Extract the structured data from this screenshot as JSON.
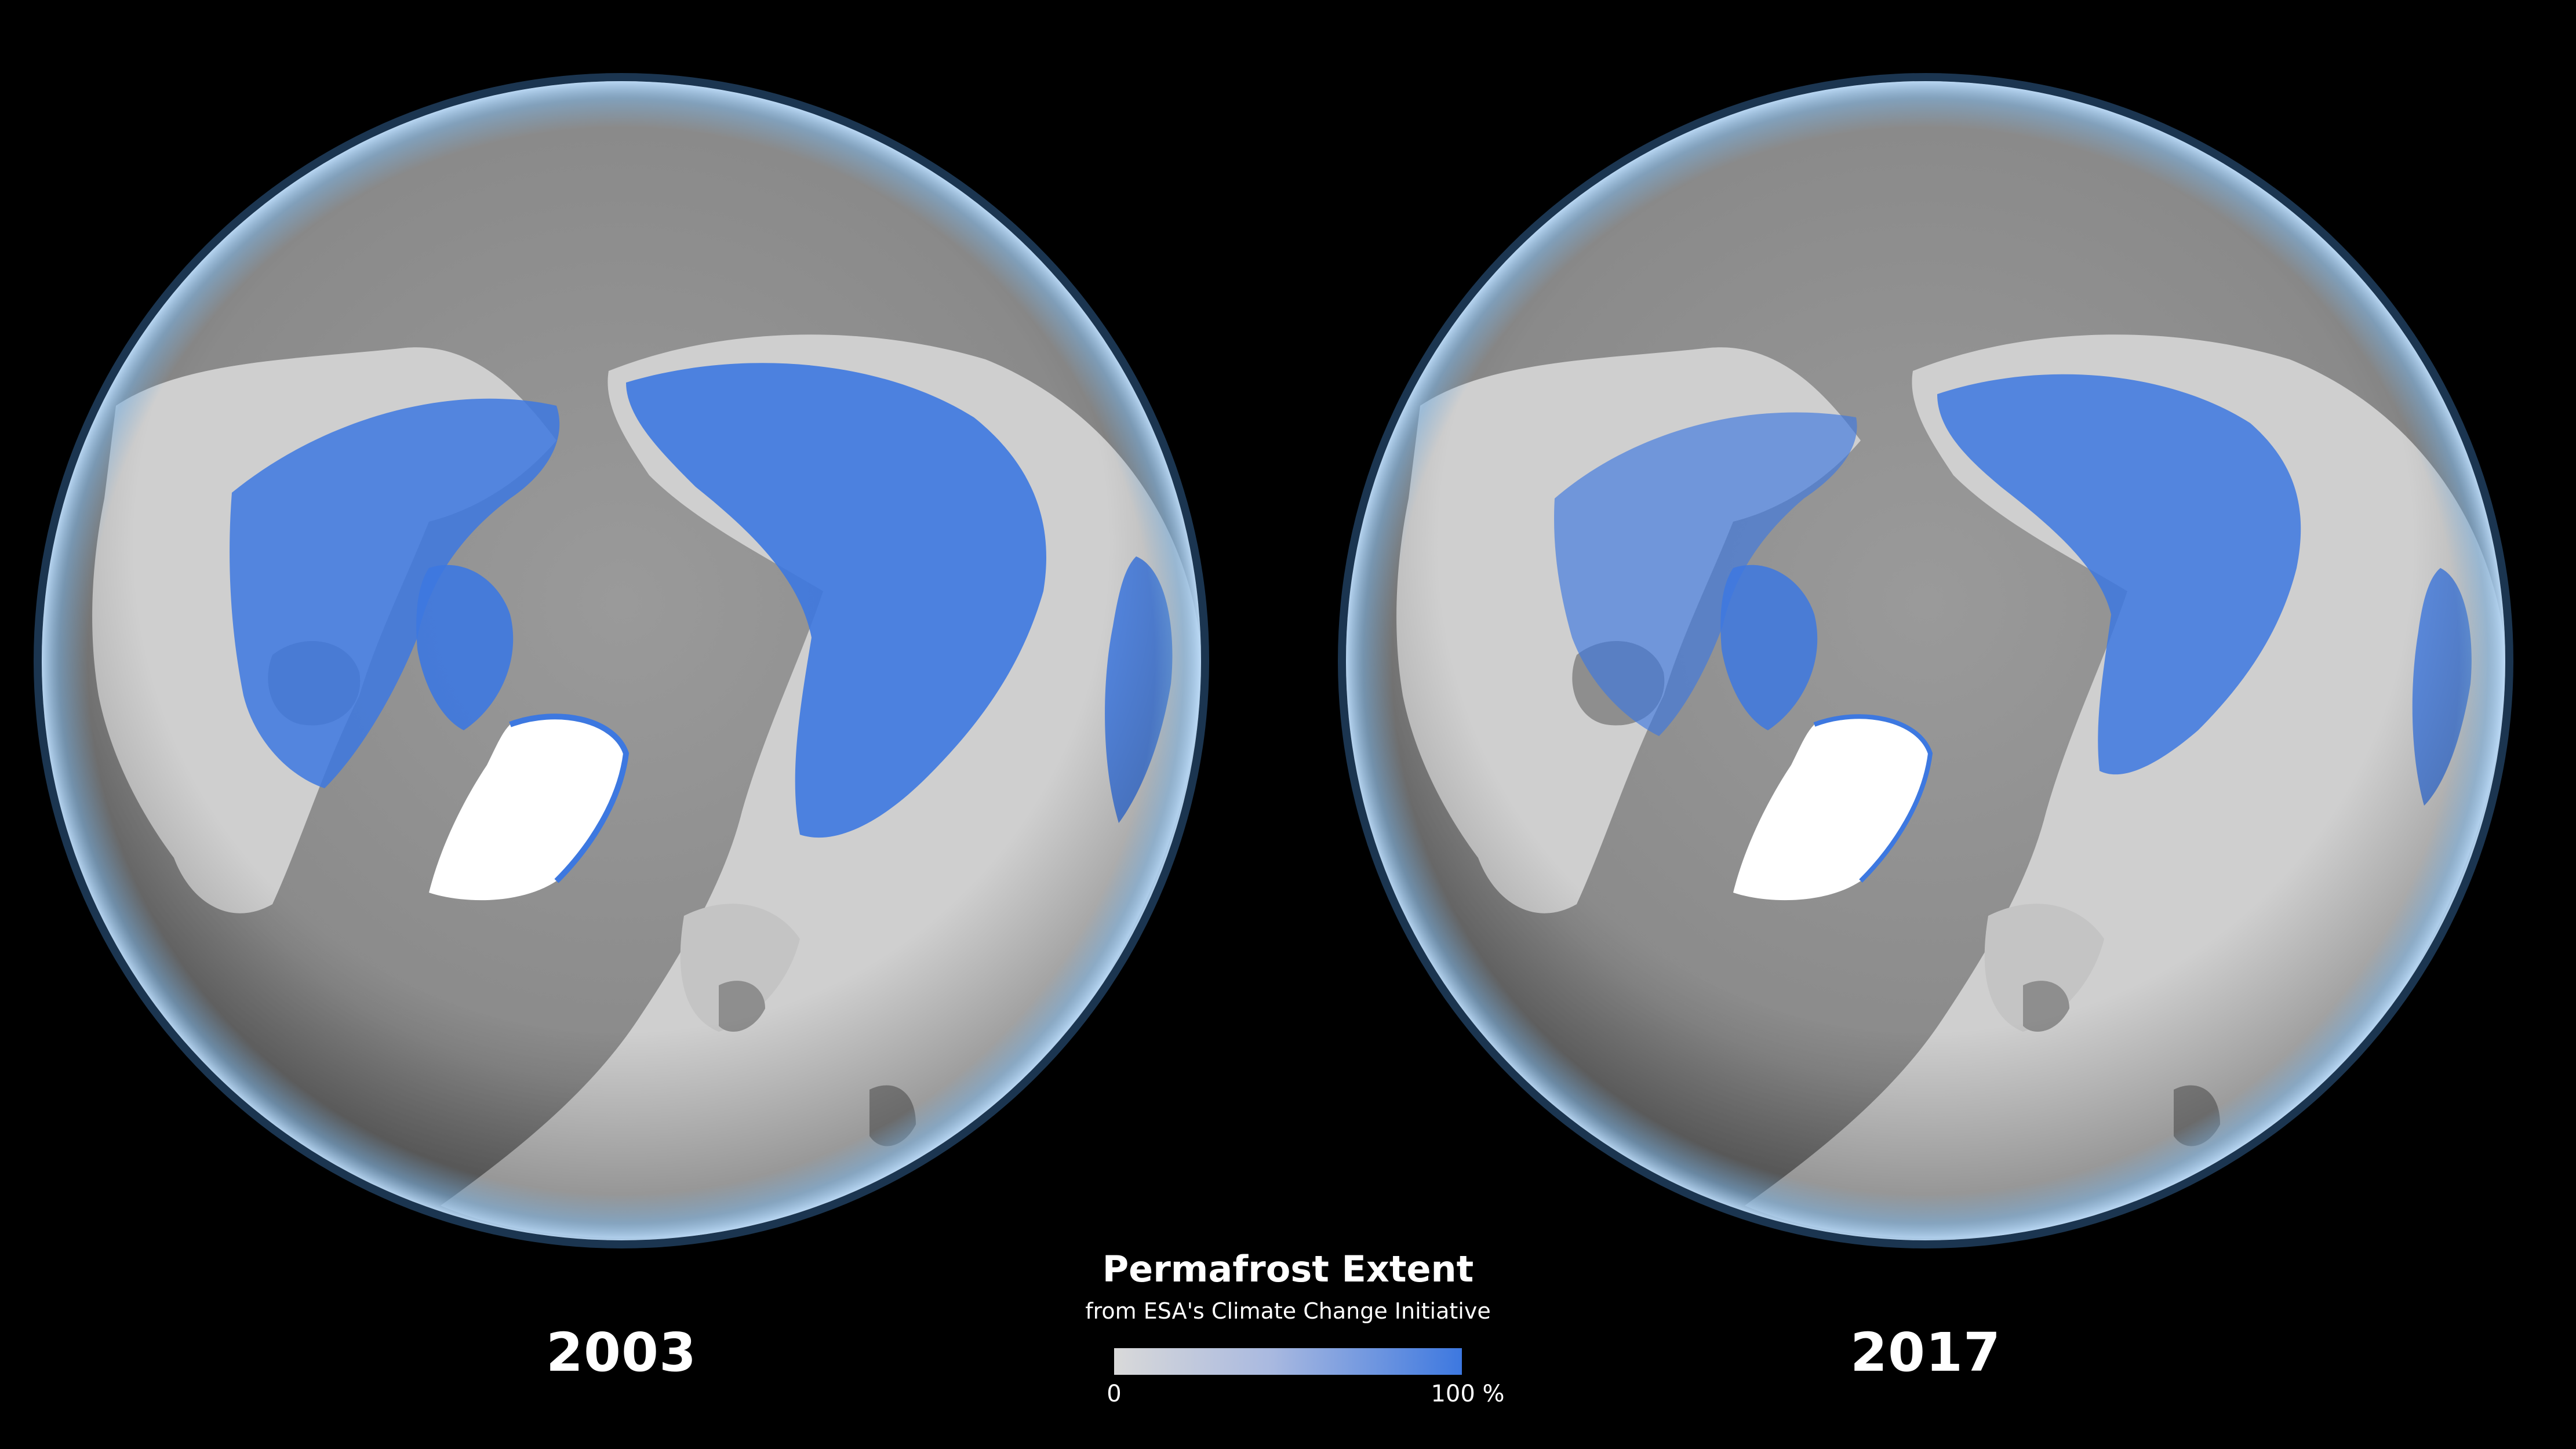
{
  "maps": [
    {
      "year": "2003",
      "projection": "orthographic north polar view",
      "permafrost_coverage": "extensive"
    },
    {
      "year": "2017",
      "projection": "orthographic north polar view",
      "permafrost_coverage": "reduced"
    }
  ],
  "legend": {
    "title": "Permafrost Extent",
    "subtitle": "from ESA's Climate Change Initiative",
    "min_label": "0",
    "max_label": "100 %",
    "colors": {
      "low": "#d9d9d9",
      "high": "#3d78e0"
    }
  },
  "colors": {
    "background": "#000000",
    "ocean": "#8e8e8e",
    "land": "#c9c9c9",
    "permafrost": "#3d78e0",
    "ice_sheet": "#ffffff",
    "atmosphere_rim": "#7fb6e6"
  }
}
